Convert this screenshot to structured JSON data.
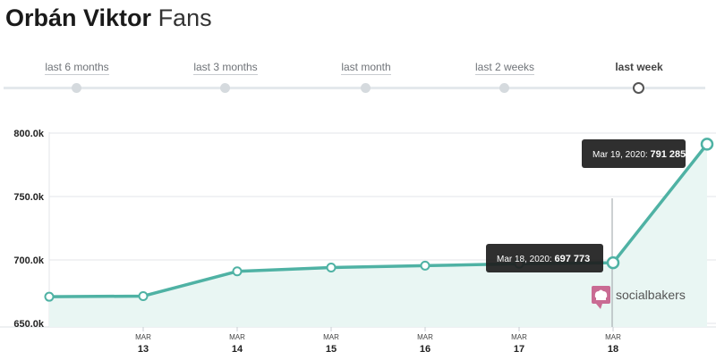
{
  "header": {
    "title_name": "Orbán Viktor",
    "title_suffix": "Fans"
  },
  "range_selector": [
    {
      "label": "last 6 months",
      "active": false
    },
    {
      "label": "last 3 months",
      "active": false
    },
    {
      "label": "last month",
      "active": false
    },
    {
      "label": "last 2 weeks",
      "active": false
    },
    {
      "label": "last week",
      "active": true
    }
  ],
  "brand": {
    "name": "socialbakers",
    "icon": "socialbakers-chef-hat-icon",
    "color": "#c96b93"
  },
  "chart_data": {
    "type": "area",
    "title": "",
    "xlabel": "",
    "ylabel": "",
    "ylim": [
      650000,
      800000
    ],
    "yticks": [
      650000,
      700000,
      750000,
      800000
    ],
    "ytick_labels": [
      "650.0k",
      "700.0k",
      "750.0k",
      "800.0k"
    ],
    "grid": true,
    "line_color": "#4fb2a4",
    "fill_color": "#e9f6f3",
    "x": [
      "2020-03-12",
      "2020-03-13",
      "2020-03-14",
      "2020-03-15",
      "2020-03-16",
      "2020-03-17",
      "2020-03-18",
      "2020-03-19"
    ],
    "xtick_labels": [
      {
        "month": "MAR",
        "day": "13"
      },
      {
        "month": "MAR",
        "day": "14"
      },
      {
        "month": "MAR",
        "day": "15"
      },
      {
        "month": "MAR",
        "day": "16"
      },
      {
        "month": "MAR",
        "day": "17"
      },
      {
        "month": "MAR",
        "day": "18"
      }
    ],
    "series": [
      {
        "values": [
          671000,
          671500,
          691000,
          694000,
          695500,
          697000,
          697773,
          791285
        ]
      }
    ],
    "tooltips": [
      {
        "date": "Mar 18, 2020:",
        "value": "697 773"
      },
      {
        "date": "Mar 19, 2020:",
        "value": "791 285"
      }
    ]
  }
}
